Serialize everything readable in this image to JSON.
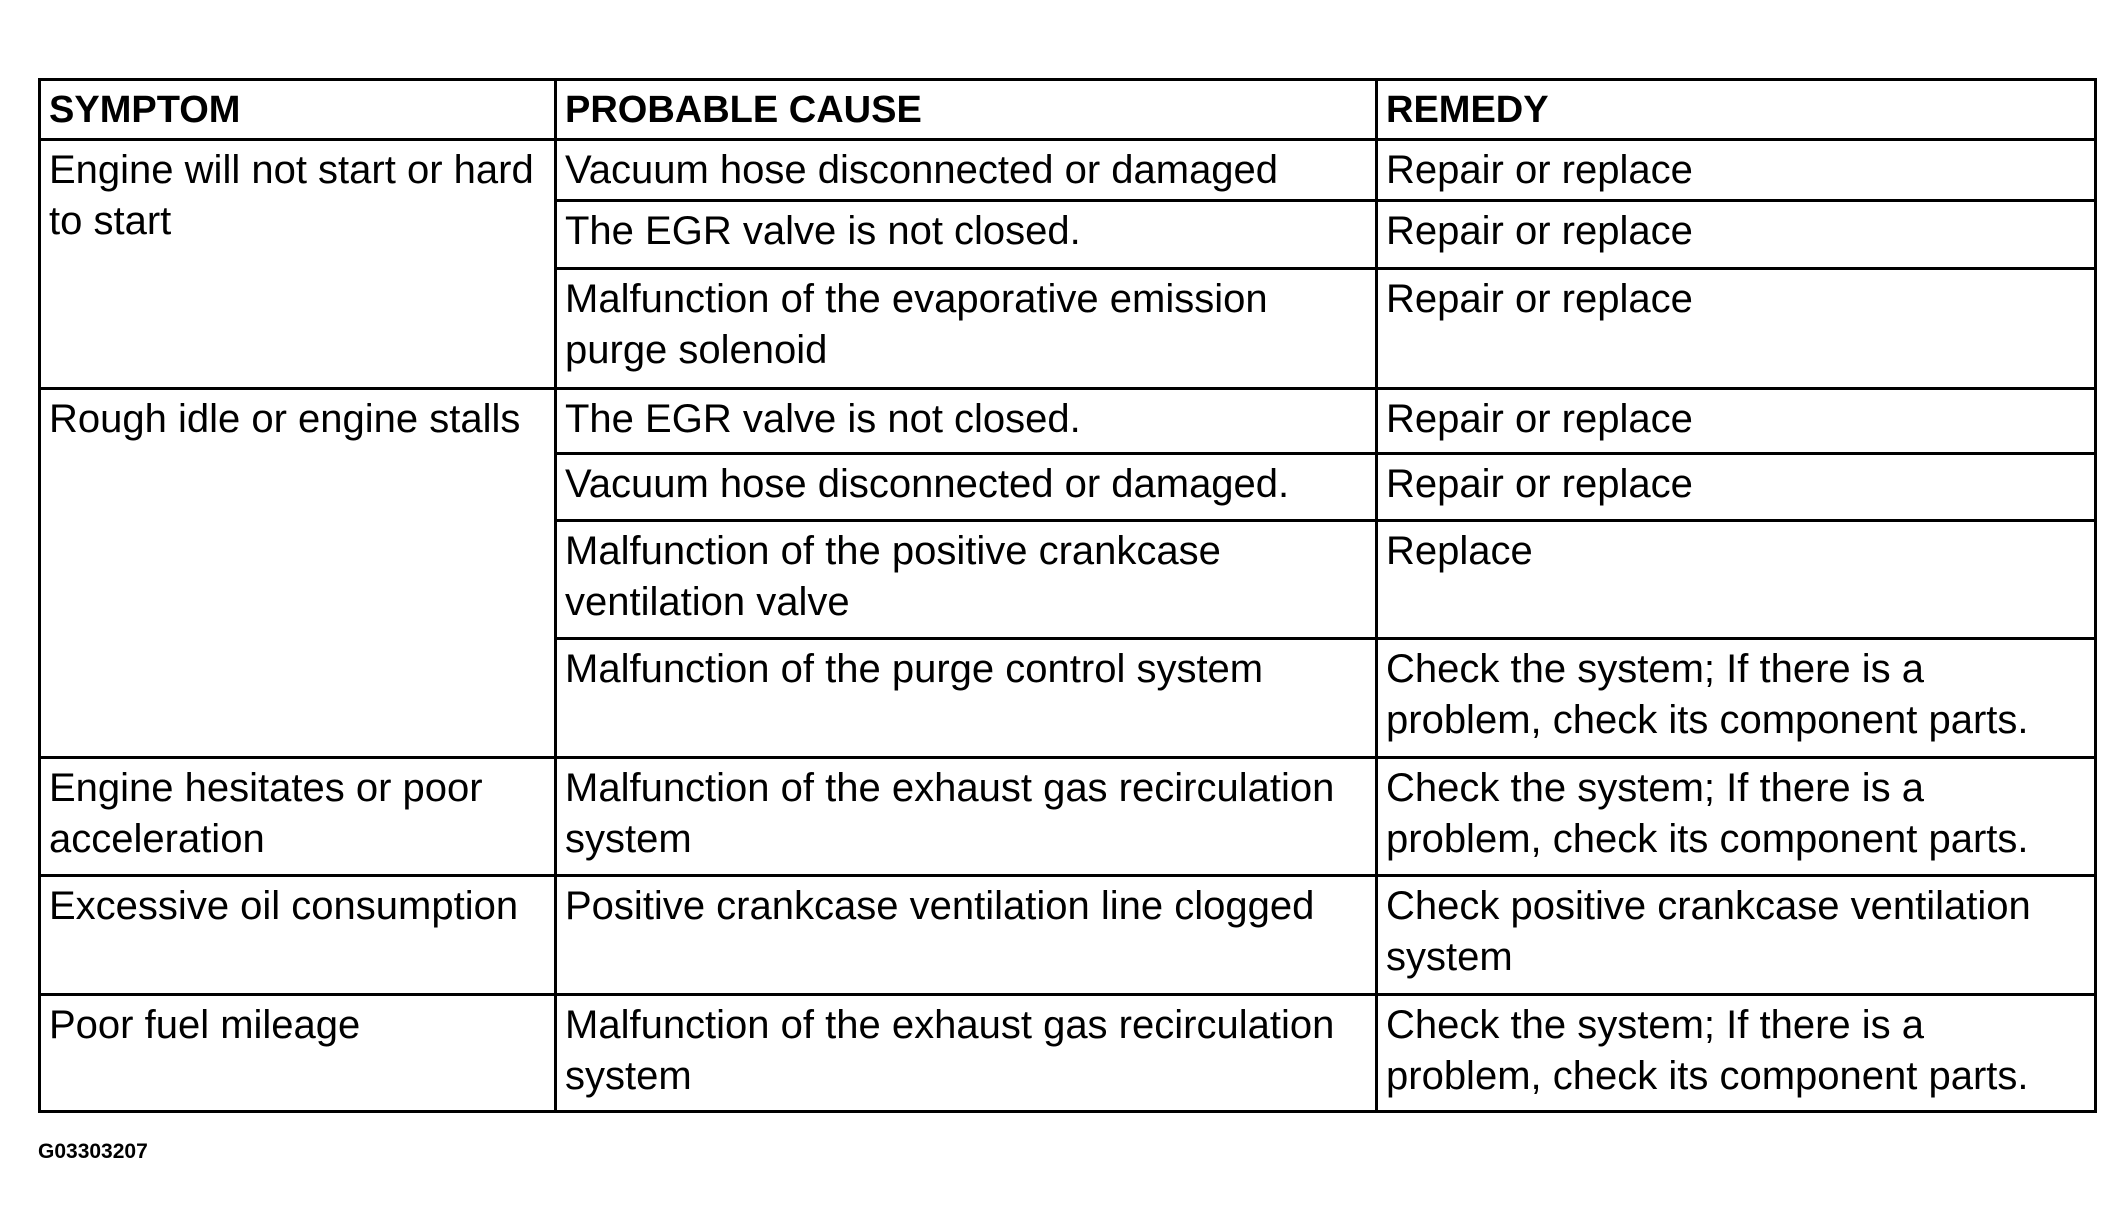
{
  "headers": [
    "SYMPTOM",
    "PROBABLE CAUSE",
    "REMEDY"
  ],
  "groups": [
    {
      "symptom": "Engine will not start or hard to start",
      "rows": [
        {
          "cause": "Vacuum hose disconnected or damaged",
          "remedy": "Repair or replace"
        },
        {
          "cause": "The EGR valve is not closed.",
          "remedy": "Repair or replace"
        },
        {
          "cause": "Malfunction of the evaporative emission purge solenoid",
          "remedy": "Repair or replace"
        }
      ]
    },
    {
      "symptom": "Rough idle or engine stalls",
      "rows": [
        {
          "cause": "The EGR valve is not closed.",
          "remedy": "Repair or replace"
        },
        {
          "cause": "Vacuum hose disconnected or damaged.",
          "remedy": "Repair or replace"
        },
        {
          "cause": "Malfunction of the positive crankcase ventilation valve",
          "remedy": "Replace"
        },
        {
          "cause": "Malfunction of the purge control system",
          "remedy": "Check the system; If there is a problem, check its component parts."
        }
      ]
    },
    {
      "symptom": "Engine hesitates or poor acceleration",
      "rows": [
        {
          "cause": "Malfunction of the exhaust gas recirculation system",
          "remedy": "Check the system; If there is a problem, check its component parts."
        }
      ]
    },
    {
      "symptom": "Excessive oil consumption",
      "rows": [
        {
          "cause": "Positive crankcase ventilation line clogged",
          "remedy": "Check positive crankcase ventilation system"
        }
      ]
    },
    {
      "symptom": "Poor fuel mileage",
      "rows": [
        {
          "cause": "Malfunction of the exhaust gas recirculation system",
          "remedy": "Check the system; If there is a problem, check its component parts."
        }
      ]
    }
  ],
  "caption": "G03303207"
}
